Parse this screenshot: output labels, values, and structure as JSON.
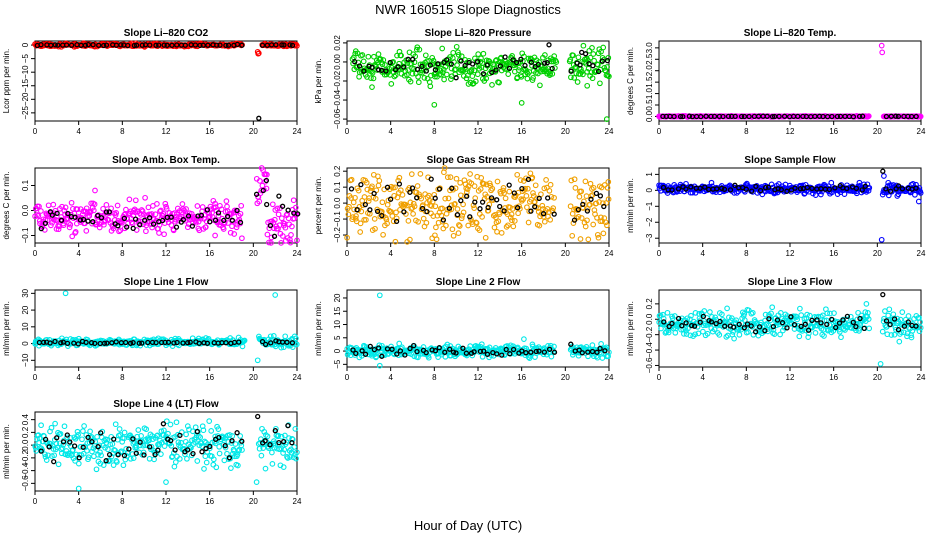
{
  "figure": {
    "title": "NWR  160515  Slope Diagnostics",
    "xlabel": "Hour of Day (UTC)"
  },
  "chart_data": [
    {
      "type": "scatter",
      "title": "Slope Li–820 CO2",
      "ylabel": "Lcor ppm per min.",
      "color": "#ff0000",
      "xlim": [
        0,
        24
      ],
      "xticks": [
        0,
        4,
        8,
        12,
        16,
        20,
        24
      ],
      "ylim": [
        -28,
        1.5
      ],
      "yticks": [
        0,
        -5,
        -10,
        -15,
        -20,
        -25
      ],
      "ytick_labels": [
        "0",
        "−5",
        "−10",
        "−15",
        "−20",
        "−25"
      ],
      "series": [
        {
          "name": "samples",
          "color": "#ff0000",
          "segments": [
            {
              "x0": 0,
              "x1": 19.0,
              "mean": 0,
              "spread": 0.25
            },
            {
              "x0": 20.8,
              "x1": 24,
              "mean": 0,
              "spread": 0.25
            }
          ],
          "outliers": [
            [
              20.4,
              -2.5
            ],
            [
              20.45,
              -3.2
            ],
            [
              20.5,
              -3.0
            ]
          ]
        },
        {
          "name": "averages",
          "color": "#000000",
          "segments": [
            {
              "x0": 0.2,
              "x1": 19.0,
              "mean": 0,
              "spread": 0.1
            },
            {
              "x0": 20.9,
              "x1": 24,
              "mean": 0,
              "spread": 0.1
            }
          ],
          "outliers": [
            [
              20.5,
              -27
            ]
          ]
        }
      ]
    },
    {
      "type": "scatter",
      "title": "Slope Li–820 Pressure",
      "ylabel": "kPa per min.",
      "xlim": [
        0,
        24
      ],
      "xticks": [
        0,
        4,
        8,
        12,
        16,
        20,
        24
      ],
      "ylim": [
        -0.062,
        0.022
      ],
      "yticks": [
        0.02,
        0.0,
        -0.02,
        -0.04,
        -0.06
      ],
      "ytick_labels": [
        "0.02",
        "0.00",
        "−0.02",
        "−0.04",
        "−0.06"
      ],
      "series": [
        {
          "name": "samples",
          "color": "#00d000",
          "segments": [
            {
              "x0": 0.5,
              "x1": 19.2,
              "mean": -0.005,
              "spread": 0.008
            },
            {
              "x0": 20.4,
              "x1": 24,
              "mean": -0.004,
              "spread": 0.009
            }
          ],
          "outliers": [
            [
              8,
              -0.045
            ],
            [
              16,
              -0.043
            ],
            [
              22,
              -0.025
            ],
            [
              23.8,
              -0.06
            ]
          ]
        },
        {
          "name": "averages",
          "color": "#000000",
          "segments": [
            {
              "x0": 0.8,
              "x1": 19.0,
              "mean": -0.005,
              "spread": 0.004
            },
            {
              "x0": 20.6,
              "x1": 23.8,
              "mean": -0.004,
              "spread": 0.005
            }
          ],
          "outliers": [
            [
              18.5,
              0.018
            ],
            [
              21.5,
              0.01
            ]
          ]
        }
      ]
    },
    {
      "type": "scatter",
      "title": "Slope Li–820 Temp.",
      "ylabel": "degrees C per min.",
      "xlim": [
        0,
        24
      ],
      "xticks": [
        0,
        4,
        8,
        12,
        16,
        20,
        24
      ],
      "ylim": [
        -0.2,
        3.3
      ],
      "yticks": [
        0.0,
        0.5,
        1.0,
        1.5,
        2.0,
        2.5,
        3.0
      ],
      "ytick_labels": [
        "0.0",
        "0.5",
        "1.0",
        "1.5",
        "2.0",
        "2.5",
        "3.0"
      ],
      "series": [
        {
          "name": "samples",
          "color": "#ff00ff",
          "segments": [
            {
              "x0": 0,
              "x1": 19.2,
              "mean": 0,
              "spread": 0.01
            },
            {
              "x0": 20.6,
              "x1": 24,
              "mean": 0,
              "spread": 0.01
            }
          ],
          "outliers": [
            [
              20.4,
              3.1
            ],
            [
              20.45,
              2.8
            ]
          ]
        },
        {
          "name": "averages",
          "color": "#000000",
          "segments": [
            {
              "x0": 0.3,
              "x1": 19.0,
              "mean": 0,
              "spread": 0.005
            },
            {
              "x0": 20.8,
              "x1": 23.8,
              "mean": 0,
              "spread": 0.005
            }
          ],
          "outliers": []
        }
      ]
    },
    {
      "type": "scatter",
      "title": "Slope Amb. Box Temp.",
      "ylabel": "degrees C per min.",
      "xlim": [
        0,
        24
      ],
      "xticks": [
        0,
        4,
        8,
        12,
        16,
        20,
        24
      ],
      "ylim": [
        -0.13,
        0.17
      ],
      "yticks": [
        0.1,
        0.0,
        -0.1
      ],
      "ytick_labels": [
        "0.1",
        "0.0",
        "−0.1"
      ],
      "series": [
        {
          "name": "samples",
          "color": "#ff00ff",
          "segments": [
            {
              "x0": 0,
              "x1": 19.0,
              "mean": -0.03,
              "spread": 0.03
            },
            {
              "x0": 20.3,
              "x1": 21.3,
              "mean": 0.08,
              "spread": 0.05
            },
            {
              "x0": 21.3,
              "x1": 24,
              "mean": -0.05,
              "spread": 0.04
            }
          ],
          "outliers": [
            [
              5.5,
              0.08
            ],
            [
              16.5,
              -0.1
            ]
          ]
        },
        {
          "name": "averages",
          "color": "#000000",
          "segments": [
            {
              "x0": 0.5,
              "x1": 19.0,
              "mean": -0.03,
              "spread": 0.02
            },
            {
              "x0": 20.4,
              "x1": 24,
              "mean": 0.0,
              "spread": 0.05
            }
          ],
          "outliers": [
            [
              21.2,
              0.12
            ]
          ]
        }
      ]
    },
    {
      "type": "scatter",
      "title": "Slope Gas Stream RH",
      "ylabel": "percent per min.",
      "xlim": [
        0,
        24
      ],
      "xticks": [
        0,
        4,
        8,
        12,
        16,
        20,
        24
      ],
      "ylim": [
        -0.25,
        0.22
      ],
      "yticks": [
        0.2,
        0.1,
        0.0,
        -0.1,
        -0.2
      ],
      "ytick_labels": [
        "0.2",
        "0.1",
        "0.0",
        "−0.1",
        "−0.2"
      ],
      "series": [
        {
          "name": "samples",
          "color": "#f0a000",
          "segments": [
            {
              "x0": 0,
              "x1": 19.0,
              "mean": 0.0,
              "spread": 0.1
            },
            {
              "x0": 20.5,
              "x1": 24,
              "mean": 0.0,
              "spread": 0.1
            }
          ],
          "outliers": []
        },
        {
          "name": "averages",
          "color": "#000000",
          "segments": [
            {
              "x0": 0.5,
              "x1": 19.0,
              "mean": 0.0,
              "spread": 0.07
            },
            {
              "x0": 20.8,
              "x1": 23.8,
              "mean": 0.0,
              "spread": 0.06
            }
          ],
          "outliers": []
        }
      ]
    },
    {
      "type": "scatter",
      "title": "Slope Sample Flow",
      "ylabel": "ml/min per min.",
      "xlim": [
        0,
        24
      ],
      "xticks": [
        0,
        4,
        8,
        12,
        16,
        20,
        24
      ],
      "ylim": [
        -3.3,
        1.4
      ],
      "yticks": [
        1,
        0,
        -1,
        -2,
        -3
      ],
      "ytick_labels": [
        "1",
        "0",
        "−1",
        "−2",
        "−3"
      ],
      "series": [
        {
          "name": "samples",
          "color": "#0000ff",
          "segments": [
            {
              "x0": 0,
              "x1": 19.3,
              "mean": 0.1,
              "spread": 0.15
            },
            {
              "x0": 20.5,
              "x1": 24,
              "mean": 0.05,
              "spread": 0.2
            }
          ],
          "outliers": [
            [
              20.4,
              -3.1
            ],
            [
              20.6,
              0.9
            ],
            [
              23.8,
              -0.7
            ]
          ]
        },
        {
          "name": "averages",
          "color": "#000000",
          "segments": [
            {
              "x0": 0.5,
              "x1": 19.0,
              "mean": 0.1,
              "spread": 0.1
            },
            {
              "x0": 20.8,
              "x1": 23.8,
              "mean": 0.05,
              "spread": 0.1
            }
          ],
          "outliers": [
            [
              20.5,
              1.2
            ]
          ]
        }
      ]
    },
    {
      "type": "scatter",
      "title": "Slope Line 1 Flow",
      "ylabel": "ml/min per min.",
      "xlim": [
        0,
        24
      ],
      "xticks": [
        0,
        4,
        8,
        12,
        16,
        20,
        24
      ],
      "ylim": [
        -14,
        32
      ],
      "yticks": [
        30,
        20,
        10,
        0,
        -10
      ],
      "ytick_labels": [
        "30",
        "20",
        "10",
        "0",
        "−10"
      ],
      "series": [
        {
          "name": "samples",
          "color": "#00e8e8",
          "segments": [
            {
              "x0": 0,
              "x1": 19.2,
              "mean": 0.8,
              "spread": 1.0
            },
            {
              "x0": 20.5,
              "x1": 24,
              "mean": 1.0,
              "spread": 1.6
            }
          ],
          "outliers": [
            [
              2.8,
              30
            ],
            [
              22.0,
              29
            ],
            [
              20.4,
              -10
            ]
          ]
        },
        {
          "name": "averages",
          "color": "#000000",
          "segments": [
            {
              "x0": 0.3,
              "x1": 19.0,
              "mean": 0.5,
              "spread": 0.3
            },
            {
              "x0": 20.8,
              "x1": 23.8,
              "mean": 0.8,
              "spread": 0.6
            }
          ],
          "outliers": []
        }
      ]
    },
    {
      "type": "scatter",
      "title": "Slope Line 2 Flow",
      "ylabel": "ml/min per min.",
      "xlim": [
        0,
        24
      ],
      "xticks": [
        0,
        4,
        8,
        12,
        16,
        20,
        24
      ],
      "ylim": [
        -6,
        23
      ],
      "yticks": [
        20,
        15,
        10,
        5,
        0,
        -5
      ],
      "ytick_labels": [
        "20",
        "15",
        "10",
        "5",
        "0",
        "−5"
      ],
      "series": [
        {
          "name": "samples",
          "color": "#00e8e8",
          "segments": [
            {
              "x0": 0,
              "x1": 19.0,
              "mean": 0.0,
              "spread": 1.2
            },
            {
              "x0": 20.5,
              "x1": 24,
              "mean": 0.0,
              "spread": 1.3
            }
          ],
          "outliers": [
            [
              3.0,
              21
            ],
            [
              3.0,
              -5.5
            ],
            [
              16.2,
              4.5
            ]
          ]
        },
        {
          "name": "averages",
          "color": "#000000",
          "segments": [
            {
              "x0": 0.5,
              "x1": 19.0,
              "mean": 0.0,
              "spread": 0.9
            },
            {
              "x0": 20.8,
              "x1": 23.8,
              "mean": 0.0,
              "spread": 0.6
            }
          ],
          "outliers": [
            [
              20.5,
              2.6
            ]
          ]
        }
      ]
    },
    {
      "type": "scatter",
      "title": "Slope Line 3 Flow",
      "ylabel": "ml/min per min.",
      "xlim": [
        0,
        24
      ],
      "xticks": [
        0,
        4,
        8,
        12,
        16,
        20,
        24
      ],
      "ylim": [
        -0.62,
        0.38
      ],
      "yticks": [
        0.2,
        0.0,
        -0.2,
        -0.4,
        -0.6
      ],
      "ytick_labels": [
        "0.2",
        "0.0",
        "−0.2",
        "−0.4",
        "−0.6"
      ],
      "series": [
        {
          "name": "samples",
          "color": "#00e8e8",
          "segments": [
            {
              "x0": 0,
              "x1": 19.3,
              "mean": -0.06,
              "spread": 0.08
            },
            {
              "x0": 20.5,
              "x1": 24,
              "mean": -0.06,
              "spread": 0.09
            }
          ],
          "outliers": [
            [
              20.3,
              -0.58
            ],
            [
              19.0,
              0.2
            ]
          ]
        },
        {
          "name": "averages",
          "color": "#000000",
          "segments": [
            {
              "x0": 0.5,
              "x1": 19.0,
              "mean": -0.06,
              "spread": 0.05
            },
            {
              "x0": 20.8,
              "x1": 23.8,
              "mean": -0.06,
              "spread": 0.06
            }
          ],
          "outliers": [
            [
              20.5,
              0.32
            ]
          ]
        }
      ]
    },
    {
      "type": "scatter",
      "title": "Slope Line 4 (LT) Flow",
      "ylabel": "ml/min per min.",
      "xlim": [
        0,
        24
      ],
      "xticks": [
        0,
        4,
        8,
        12,
        16,
        20,
        24
      ],
      "ylim": [
        -0.72,
        0.52
      ],
      "yticks": [
        0.4,
        0.2,
        0.0,
        -0.2,
        -0.4,
        -0.6
      ],
      "ytick_labels": [
        "0.4",
        "0.2",
        "0.0",
        "−0.2",
        "−0.4",
        "−0.6"
      ],
      "series": [
        {
          "name": "samples",
          "color": "#00e8e8",
          "segments": [
            {
              "x0": 0,
              "x1": 19.0,
              "mean": 0.0,
              "spread": 0.15
            },
            {
              "x0": 20.5,
              "x1": 24,
              "mean": 0.0,
              "spread": 0.15
            }
          ],
          "outliers": [
            [
              4.0,
              -0.68
            ],
            [
              12.0,
              -0.58
            ],
            [
              20.3,
              -0.58
            ]
          ]
        },
        {
          "name": "averages",
          "color": "#000000",
          "segments": [
            {
              "x0": 0.5,
              "x1": 19.0,
              "mean": 0.0,
              "spread": 0.12
            },
            {
              "x0": 20.8,
              "x1": 23.8,
              "mean": 0.05,
              "spread": 0.12
            }
          ],
          "outliers": [
            [
              20.4,
              0.45
            ]
          ]
        }
      ]
    }
  ]
}
